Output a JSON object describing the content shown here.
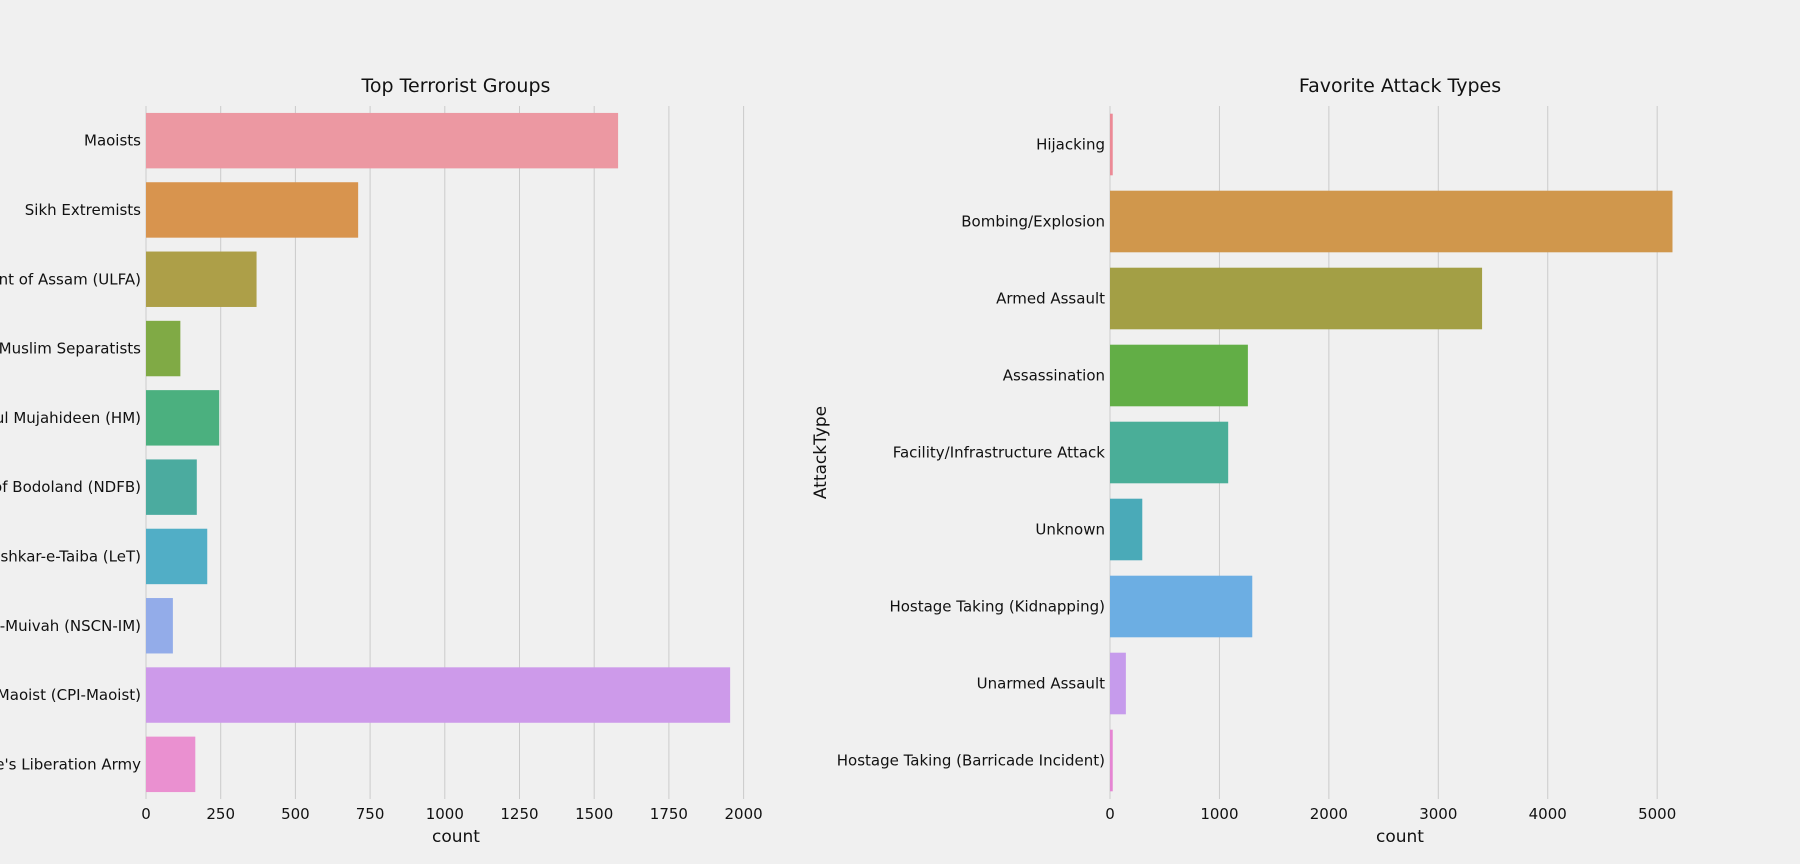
{
  "chart_data": [
    {
      "type": "bar",
      "orientation": "horizontal",
      "title": "Top Terrorist Groups",
      "xlabel": "count",
      "ylabel": "",
      "xlim": [
        0,
        2075
      ],
      "xticks": [
        0,
        250,
        500,
        750,
        1000,
        1250,
        1500,
        1750,
        2000
      ],
      "grid": "vertical",
      "categories": [
        "Maoists",
        "Sikh Extremists",
        "United Liberation Front of Assam (ULFA)",
        "Muslim Separatists",
        "Hizbul Mujahideen (HM)",
        "National Democratic Front of Bodoland (NDFB)",
        "Lashkar-e-Taiba (LeT)",
        "National Socialist Council of Nagaland-Isak-Muivah (NSCN-IM)",
        "Communist Party of India - Maoist (CPI-Maoist)",
        "People's Liberation Army"
      ],
      "values": [
        1580,
        710,
        370,
        115,
        245,
        170,
        205,
        90,
        1955,
        165
      ],
      "colors": [
        "#ec98a2",
        "#d8944e",
        "#ad9f48",
        "#80aa45",
        "#4bb07f",
        "#4bab9f",
        "#51aec6",
        "#93ace9",
        "#cd9aea",
        "#ea90d0"
      ]
    },
    {
      "type": "bar",
      "orientation": "horizontal",
      "title": "Favorite Attack Types",
      "xlabel": "count",
      "ylabel": "AttackType",
      "xlim": [
        0,
        5300
      ],
      "xticks": [
        0,
        1000,
        2000,
        3000,
        4000,
        5000
      ],
      "grid": "vertical",
      "categories": [
        "Hijacking",
        "Bombing/Explosion",
        "Armed Assault",
        "Assassination",
        "Facility/Infrastructure Attack",
        "Unknown",
        "Hostage Taking (Kidnapping)",
        "Unarmed Assault",
        "Hostage Taking (Barricade Incident)"
      ],
      "values": [
        25,
        5140,
        3400,
        1260,
        1080,
        295,
        1300,
        145,
        25
      ],
      "colors": [
        "#ec8a96",
        "#d0974c",
        "#a39f45",
        "#62ae46",
        "#4aae98",
        "#4aaab8",
        "#6caee3",
        "#c69bec",
        "#e585d3"
      ]
    }
  ]
}
